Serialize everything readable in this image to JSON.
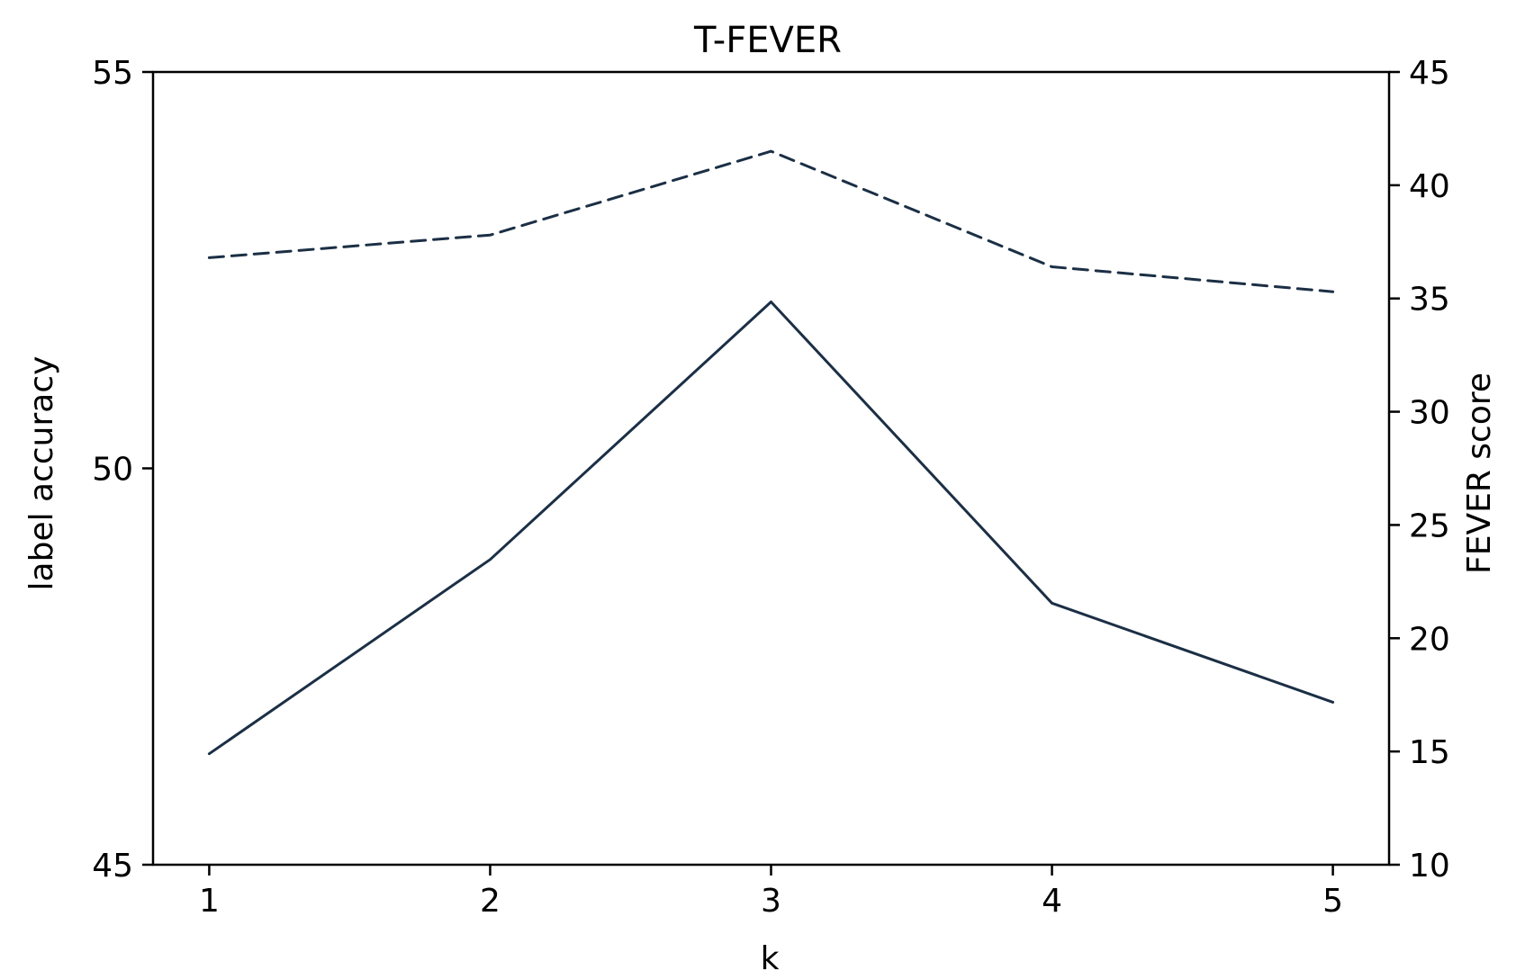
{
  "chart_data": {
    "type": "line",
    "title": "T-FEVER",
    "xlabel": "k",
    "ylabel_left": "label accuracy",
    "ylabel_right": "FEVER score",
    "x": [
      1,
      2,
      3,
      4,
      5
    ],
    "xticks": [
      "1",
      "2",
      "3",
      "4",
      "5"
    ],
    "ylim_left": [
      45,
      55
    ],
    "yticks_left": [
      45,
      50,
      55
    ],
    "ylim_right": [
      10,
      45
    ],
    "yticks_right": [
      10,
      15,
      20,
      25,
      30,
      35,
      40,
      45
    ],
    "series": [
      {
        "axis": "left",
        "style": "solid",
        "values": [
          46.4,
          48.85,
          52.1,
          48.3,
          47.05
        ]
      },
      {
        "axis": "right",
        "style": "dashed",
        "values": [
          36.8,
          37.8,
          41.5,
          36.4,
          35.3
        ]
      }
    ],
    "grid": false,
    "line_color": "#1b2f45"
  }
}
